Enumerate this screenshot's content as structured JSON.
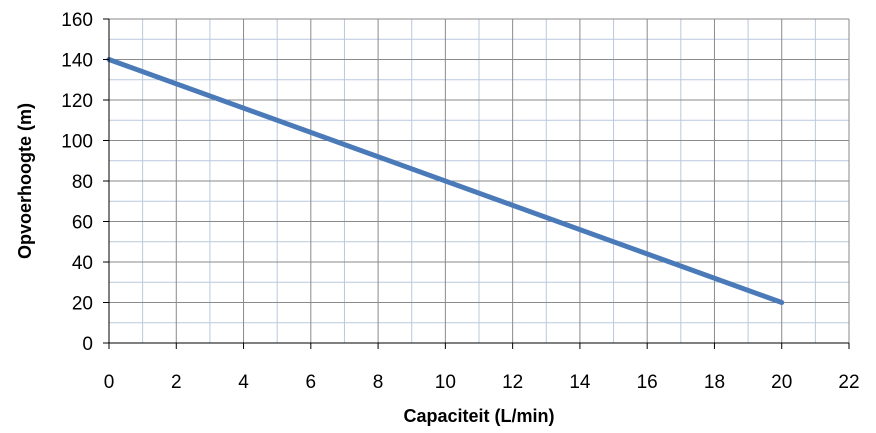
{
  "chart_data": {
    "type": "line",
    "xlabel": "Capaciteit (L/min)",
    "ylabel": "Opvoerhoogte (m)",
    "xlim": [
      0,
      22
    ],
    "ylim": [
      0,
      160
    ],
    "x_ticks": [
      0,
      2,
      4,
      6,
      8,
      10,
      12,
      14,
      16,
      18,
      20,
      22
    ],
    "y_ticks": [
      0,
      20,
      40,
      60,
      80,
      100,
      120,
      140,
      160
    ],
    "grid": true,
    "legend": "none",
    "series": [
      {
        "x": [
          0,
          20
        ],
        "y": [
          140,
          20
        ],
        "color": "#4a7ab8"
      }
    ]
  },
  "colors": {
    "major_grid": "#8a8a8a",
    "minor_grid": "#b9c9de",
    "axis": "#000000"
  }
}
